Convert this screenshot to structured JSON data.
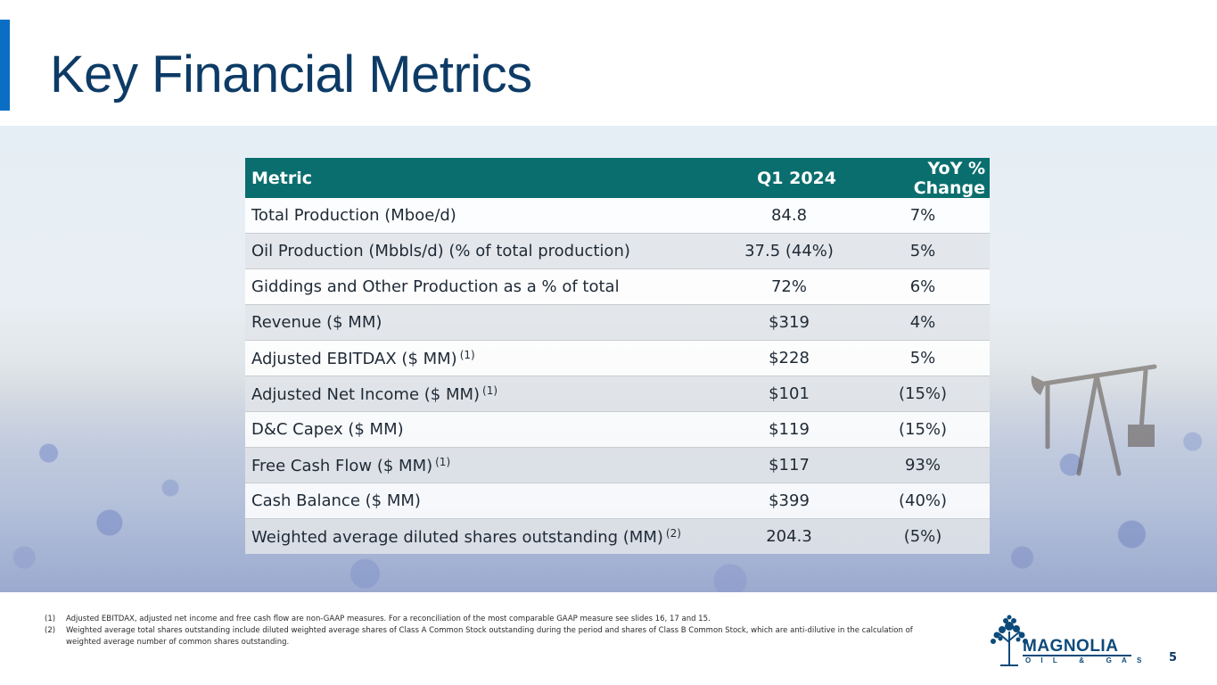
{
  "slide": {
    "title": "Key Financial Metrics",
    "page_number": "5",
    "accent_color": "#0a6fc4",
    "title_color": "#0d3b66",
    "header_color": "#0b6e6e"
  },
  "table": {
    "headers": {
      "metric": "Metric",
      "q1": "Q1 2024",
      "yoy": "YoY % Change"
    },
    "rows": [
      {
        "metric": "Total Production (Mboe/d)",
        "note": "",
        "q1": "84.8",
        "yoy": "7%"
      },
      {
        "metric": "Oil Production (Mbbls/d) (% of total production)",
        "note": "",
        "q1": "37.5 (44%)",
        "yoy": "5%"
      },
      {
        "metric": "Giddings and Other Production as a % of total",
        "note": "",
        "q1": "72%",
        "yoy": "6%"
      },
      {
        "metric": "Revenue ($ MM)",
        "note": "",
        "q1": "$319",
        "yoy": "4%"
      },
      {
        "metric": "Adjusted EBITDAX ($ MM)",
        "note": "(1)",
        "q1": "$228",
        "yoy": "5%"
      },
      {
        "metric": "Adjusted Net Income ($ MM)",
        "note": "(1)",
        "q1": "$101",
        "yoy": "(15%)"
      },
      {
        "metric": "D&C Capex ($ MM)",
        "note": "",
        "q1": "$119",
        "yoy": "(15%)"
      },
      {
        "metric": "Free Cash Flow ($ MM)",
        "note": "(1)",
        "q1": "$117",
        "yoy": "93%"
      },
      {
        "metric": "Cash Balance ($ MM)",
        "note": "",
        "q1": "$399",
        "yoy": "(40%)"
      },
      {
        "metric": "Weighted average diluted shares outstanding (MM)",
        "note": "(2)",
        "q1": "204.3",
        "yoy": "(5%)"
      }
    ]
  },
  "footnotes": [
    {
      "num": "(1)",
      "text": "Adjusted EBITDAX, adjusted net income and free cash flow are non-GAAP measures. For a reconciliation of the most comparable GAAP measure see slides 16, 17 and 15."
    },
    {
      "num": "(2)",
      "text": "Weighted average total shares outstanding include diluted weighted average shares of Class A Common Stock outstanding during the period and shares of Class B Common Stock, which are anti-dilutive in the calculation of weighted average number of common shares outstanding."
    }
  ],
  "logo": {
    "name": "MAGNOLIA",
    "tagline": "OIL & GAS",
    "icon": "magnolia-tree-icon"
  }
}
